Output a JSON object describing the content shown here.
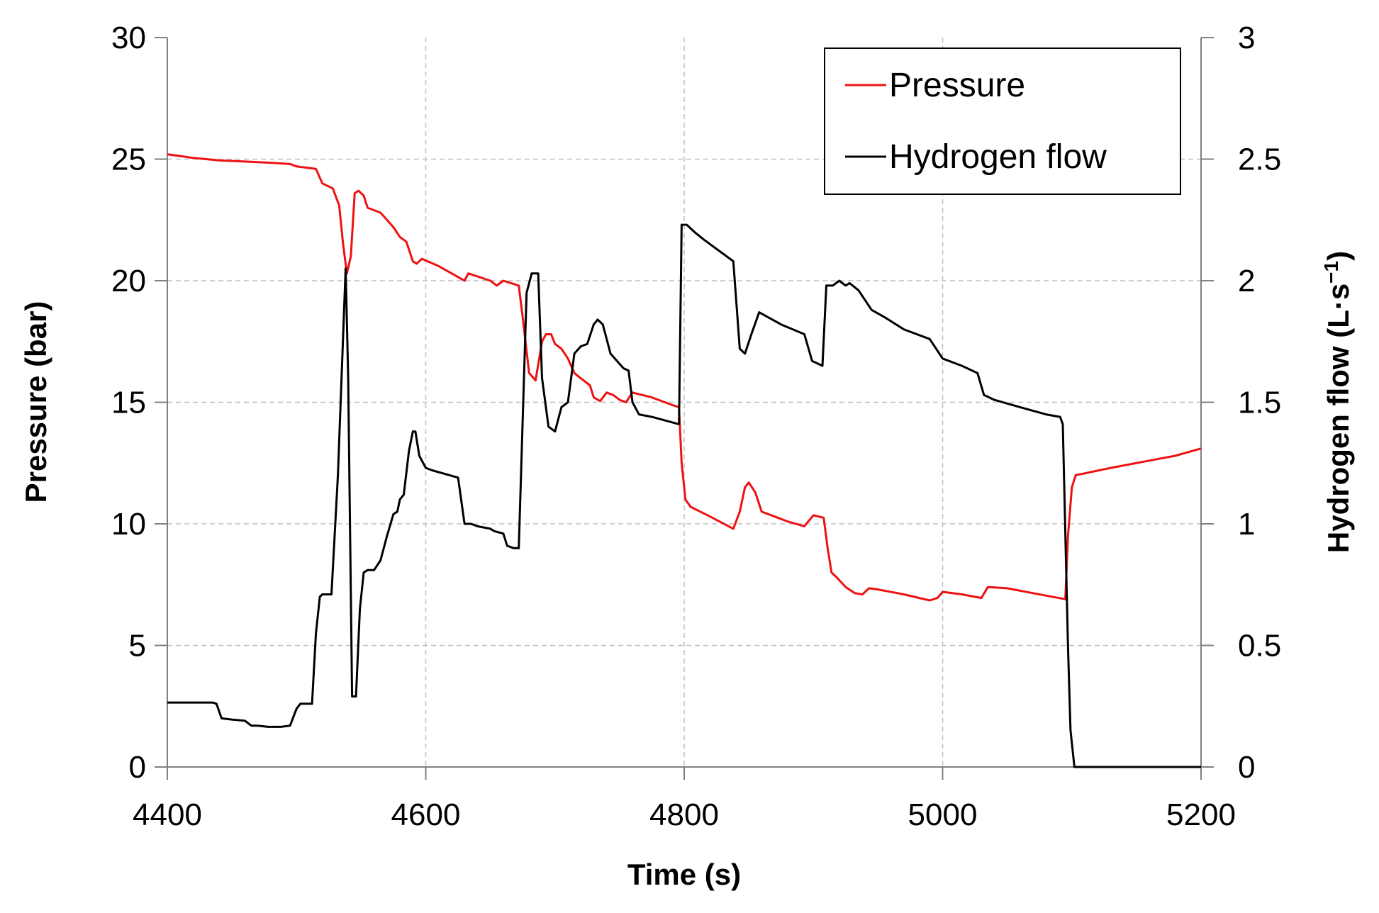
{
  "chart_data": {
    "type": "line",
    "title": "",
    "xlabel": "Time (s)",
    "ylabel": "Pressure (bar)",
    "y2label_main": "Hydrogen flow (L·s",
    "y2label_sup": "−1",
    "y2label_end": ")",
    "xlim": [
      4400,
      5200
    ],
    "ylim": [
      0,
      30
    ],
    "y2lim": [
      0,
      3
    ],
    "x_ticks": [
      "4400",
      "4600",
      "4800",
      "5000",
      "5200"
    ],
    "y_ticks": [
      "0",
      "5",
      "10",
      "15",
      "20",
      "25",
      "30"
    ],
    "y2_ticks": [
      "0",
      "0.5",
      "1",
      "1.5",
      "2",
      "2.5",
      "3"
    ],
    "grid": true,
    "legend_position": "top-right",
    "series": [
      {
        "name": "Pressure",
        "axis": "left",
        "color": "#ee1111",
        "points": [
          [
            4400,
            25.2
          ],
          [
            4420,
            25.05
          ],
          [
            4440,
            24.95
          ],
          [
            4460,
            24.9
          ],
          [
            4480,
            24.85
          ],
          [
            4495,
            24.8
          ],
          [
            4500,
            24.7
          ],
          [
            4515,
            24.6
          ],
          [
            4520,
            24.0
          ],
          [
            4528,
            23.8
          ],
          [
            4533,
            23.1
          ],
          [
            4536,
            21.5
          ],
          [
            4539,
            20.3
          ],
          [
            4542,
            21.0
          ],
          [
            4545,
            23.6
          ],
          [
            4548,
            23.7
          ],
          [
            4552,
            23.5
          ],
          [
            4555,
            23.0
          ],
          [
            4565,
            22.8
          ],
          [
            4570,
            22.5
          ],
          [
            4575,
            22.2
          ],
          [
            4580,
            21.8
          ],
          [
            4585,
            21.6
          ],
          [
            4590,
            20.8
          ],
          [
            4593,
            20.7
          ],
          [
            4597,
            20.9
          ],
          [
            4610,
            20.6
          ],
          [
            4620,
            20.3
          ],
          [
            4630,
            20.0
          ],
          [
            4633,
            20.3
          ],
          [
            4650,
            20.0
          ],
          [
            4655,
            19.8
          ],
          [
            4660,
            20.0
          ],
          [
            4672,
            19.8
          ],
          [
            4675,
            18.5
          ],
          [
            4680,
            16.2
          ],
          [
            4685,
            15.9
          ],
          [
            4690,
            17.5
          ],
          [
            4693,
            17.8
          ],
          [
            4697,
            17.8
          ],
          [
            4700,
            17.4
          ],
          [
            4705,
            17.2
          ],
          [
            4710,
            16.8
          ],
          [
            4715,
            16.2
          ],
          [
            4722,
            15.9
          ],
          [
            4727,
            15.7
          ],
          [
            4730,
            15.2
          ],
          [
            4735,
            15.05
          ],
          [
            4740,
            15.4
          ],
          [
            4745,
            15.3
          ],
          [
            4750,
            15.1
          ],
          [
            4755,
            15.0
          ],
          [
            4760,
            15.4
          ],
          [
            4775,
            15.2
          ],
          [
            4790,
            14.9
          ],
          [
            4796,
            14.8
          ],
          [
            4798,
            12.5
          ],
          [
            4801,
            11.0
          ],
          [
            4805,
            10.7
          ],
          [
            4820,
            10.3
          ],
          [
            4838,
            9.8
          ],
          [
            4843,
            10.5
          ],
          [
            4847,
            11.5
          ],
          [
            4850,
            11.7
          ],
          [
            4855,
            11.3
          ],
          [
            4860,
            10.5
          ],
          [
            4870,
            10.3
          ],
          [
            4880,
            10.1
          ],
          [
            4893,
            9.9
          ],
          [
            4896,
            10.1
          ],
          [
            4900,
            10.35
          ],
          [
            4908,
            10.25
          ],
          [
            4911,
            9.0
          ],
          [
            4914,
            8.0
          ],
          [
            4918,
            7.8
          ],
          [
            4925,
            7.4
          ],
          [
            4932,
            7.15
          ],
          [
            4938,
            7.1
          ],
          [
            4943,
            7.35
          ],
          [
            4950,
            7.3
          ],
          [
            4970,
            7.1
          ],
          [
            4990,
            6.85
          ],
          [
            4996,
            6.95
          ],
          [
            5000,
            7.2
          ],
          [
            5015,
            7.1
          ],
          [
            5030,
            6.95
          ],
          [
            5035,
            7.4
          ],
          [
            5050,
            7.35
          ],
          [
            5070,
            7.15
          ],
          [
            5095,
            6.9
          ],
          [
            5097,
            9.5
          ],
          [
            5100,
            11.5
          ],
          [
            5103,
            12.0
          ],
          [
            5130,
            12.3
          ],
          [
            5160,
            12.6
          ],
          [
            5180,
            12.8
          ],
          [
            5200,
            13.1
          ]
        ]
      },
      {
        "name": "Hydrogen flow",
        "axis": "right",
        "color": "#000000",
        "points": [
          [
            4400,
            0.265
          ],
          [
            4435,
            0.265
          ],
          [
            4438,
            0.26
          ],
          [
            4442,
            0.2
          ],
          [
            4450,
            0.195
          ],
          [
            4460,
            0.19
          ],
          [
            4465,
            0.17
          ],
          [
            4470,
            0.17
          ],
          [
            4478,
            0.165
          ],
          [
            4488,
            0.165
          ],
          [
            4495,
            0.17
          ],
          [
            4500,
            0.24
          ],
          [
            4503,
            0.26
          ],
          [
            4512,
            0.26
          ],
          [
            4515,
            0.55
          ],
          [
            4518,
            0.7
          ],
          [
            4520,
            0.71
          ],
          [
            4527,
            0.71
          ],
          [
            4532,
            1.2
          ],
          [
            4538,
            2.05
          ],
          [
            4540,
            1.6
          ],
          [
            4543,
            0.29
          ],
          [
            4546,
            0.29
          ],
          [
            4549,
            0.65
          ],
          [
            4552,
            0.8
          ],
          [
            4555,
            0.81
          ],
          [
            4560,
            0.81
          ],
          [
            4565,
            0.85
          ],
          [
            4570,
            0.95
          ],
          [
            4575,
            1.04
          ],
          [
            4578,
            1.05
          ],
          [
            4580,
            1.1
          ],
          [
            4583,
            1.12
          ],
          [
            4587,
            1.3
          ],
          [
            4590,
            1.38
          ],
          [
            4592,
            1.38
          ],
          [
            4595,
            1.28
          ],
          [
            4600,
            1.23
          ],
          [
            4605,
            1.22
          ],
          [
            4625,
            1.19
          ],
          [
            4630,
            1.0
          ],
          [
            4635,
            1.0
          ],
          [
            4640,
            0.99
          ],
          [
            4650,
            0.98
          ],
          [
            4653,
            0.97
          ],
          [
            4660,
            0.96
          ],
          [
            4663,
            0.91
          ],
          [
            4668,
            0.9
          ],
          [
            4672,
            0.9
          ],
          [
            4678,
            1.95
          ],
          [
            4682,
            2.03
          ],
          [
            4687,
            2.03
          ],
          [
            4690,
            1.6
          ],
          [
            4695,
            1.4
          ],
          [
            4700,
            1.38
          ],
          [
            4705,
            1.48
          ],
          [
            4710,
            1.5
          ],
          [
            4715,
            1.7
          ],
          [
            4720,
            1.73
          ],
          [
            4725,
            1.74
          ],
          [
            4730,
            1.82
          ],
          [
            4733,
            1.84
          ],
          [
            4737,
            1.82
          ],
          [
            4743,
            1.7
          ],
          [
            4753,
            1.64
          ],
          [
            4757,
            1.63
          ],
          [
            4760,
            1.5
          ],
          [
            4765,
            1.45
          ],
          [
            4775,
            1.44
          ],
          [
            4796,
            1.41
          ],
          [
            4798,
            2.23
          ],
          [
            4802,
            2.23
          ],
          [
            4808,
            2.2
          ],
          [
            4815,
            2.17
          ],
          [
            4838,
            2.08
          ],
          [
            4843,
            1.72
          ],
          [
            4847,
            1.7
          ],
          [
            4852,
            1.78
          ],
          [
            4858,
            1.87
          ],
          [
            4875,
            1.82
          ],
          [
            4893,
            1.78
          ],
          [
            4899,
            1.67
          ],
          [
            4903,
            1.66
          ],
          [
            4907,
            1.65
          ],
          [
            4910,
            1.98
          ],
          [
            4915,
            1.98
          ],
          [
            4920,
            2.0
          ],
          [
            4925,
            1.98
          ],
          [
            4928,
            1.99
          ],
          [
            4935,
            1.96
          ],
          [
            4945,
            1.88
          ],
          [
            4955,
            1.85
          ],
          [
            4970,
            1.8
          ],
          [
            4990,
            1.76
          ],
          [
            4995,
            1.72
          ],
          [
            5000,
            1.68
          ],
          [
            5015,
            1.65
          ],
          [
            5027,
            1.62
          ],
          [
            5032,
            1.53
          ],
          [
            5040,
            1.51
          ],
          [
            5060,
            1.48
          ],
          [
            5080,
            1.45
          ],
          [
            5091,
            1.44
          ],
          [
            5093,
            1.41
          ],
          [
            5097,
            0.5
          ],
          [
            5099,
            0.15
          ],
          [
            5102,
            0.0
          ],
          [
            5200,
            0.0
          ]
        ]
      }
    ]
  }
}
